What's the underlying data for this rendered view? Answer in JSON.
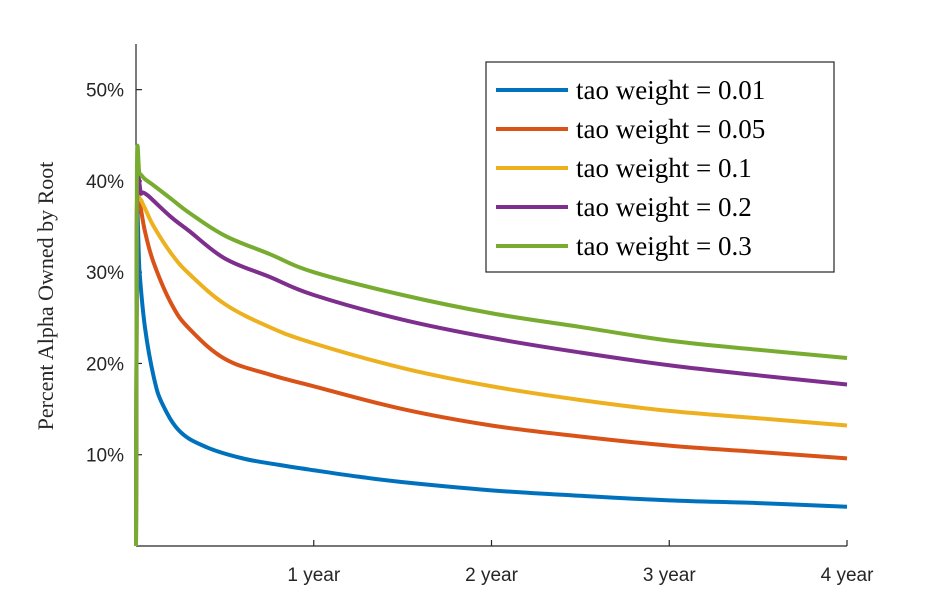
{
  "chart_data": {
    "type": "line",
    "title": "",
    "xlabel": "",
    "ylabel": "Percent Alpha Owned by Root",
    "x_unit": "year",
    "xlim": [
      0,
      4
    ],
    "ylim": [
      0,
      55
    ],
    "x_ticks": [
      {
        "value": 1,
        "label": "1 year"
      },
      {
        "value": 2,
        "label": "2 year"
      },
      {
        "value": 3,
        "label": "3 year"
      },
      {
        "value": 4,
        "label": "4 year"
      }
    ],
    "y_ticks": [
      {
        "value": 10,
        "label": "10%"
      },
      {
        "value": 20,
        "label": "20%"
      },
      {
        "value": 30,
        "label": "30%"
      },
      {
        "value": 40,
        "label": "40%"
      },
      {
        "value": 50,
        "label": "50%"
      }
    ],
    "grid": false,
    "legend": {
      "position": "top-right"
    },
    "series": [
      {
        "name": "tao weight = 0.01",
        "color": "#0072BD",
        "x": [
          0,
          0.005,
          0.02,
          0.05,
          0.1,
          0.15,
          0.25,
          0.4,
          0.6,
          0.8,
          1,
          1.25,
          1.5,
          2,
          2.5,
          3,
          3.5,
          4
        ],
        "y": [
          0,
          35,
          30,
          24,
          18.5,
          15.5,
          12.5,
          10.8,
          9.6,
          8.9,
          8.3,
          7.6,
          7,
          6.1,
          5.5,
          5,
          4.7,
          4.3
        ]
      },
      {
        "name": "tao weight = 0.05",
        "color": "#D95319",
        "x": [
          0,
          0.005,
          0.02,
          0.05,
          0.1,
          0.2,
          0.3,
          0.5,
          0.75,
          1,
          1.5,
          2,
          2.5,
          3,
          3.5,
          4
        ],
        "y": [
          0,
          36,
          37.5,
          34.5,
          31,
          26.5,
          23.8,
          20.5,
          18.8,
          17.5,
          15,
          13.2,
          12,
          11,
          10.3,
          9.6
        ]
      },
      {
        "name": "tao weight = 0.1",
        "color": "#EDB120",
        "x": [
          0,
          0.005,
          0.02,
          0.05,
          0.1,
          0.2,
          0.3,
          0.5,
          0.75,
          1,
          1.5,
          2,
          2.5,
          3,
          3.5,
          4
        ],
        "y": [
          0,
          36.5,
          38,
          37,
          35,
          32,
          29.8,
          26.5,
          24,
          22.2,
          19.5,
          17.5,
          16,
          14.8,
          14,
          13.2
        ]
      },
      {
        "name": "tao weight = 0.2",
        "color": "#7E2F8E",
        "x": [
          0,
          0.005,
          0.03,
          0.06,
          0.1,
          0.2,
          0.3,
          0.5,
          0.75,
          1,
          1.5,
          2,
          2.5,
          3,
          3.5,
          4
        ],
        "y": [
          0,
          37,
          38.6,
          38.5,
          37.8,
          36,
          34.5,
          31.5,
          29.5,
          27.5,
          24.8,
          22.8,
          21.2,
          19.8,
          18.7,
          17.7
        ]
      },
      {
        "name": "tao weight = 0.3",
        "color": "#77AC30",
        "x": [
          0,
          0.005,
          0.02,
          0.05,
          0.1,
          0.2,
          0.3,
          0.5,
          0.75,
          1,
          1.5,
          2,
          2.5,
          3,
          3.5,
          4
        ],
        "y": [
          0,
          40.5,
          40.8,
          40.2,
          39.5,
          38,
          36.5,
          34,
          32,
          30,
          27.5,
          25.5,
          24,
          22.5,
          21.5,
          20.6
        ]
      }
    ]
  }
}
